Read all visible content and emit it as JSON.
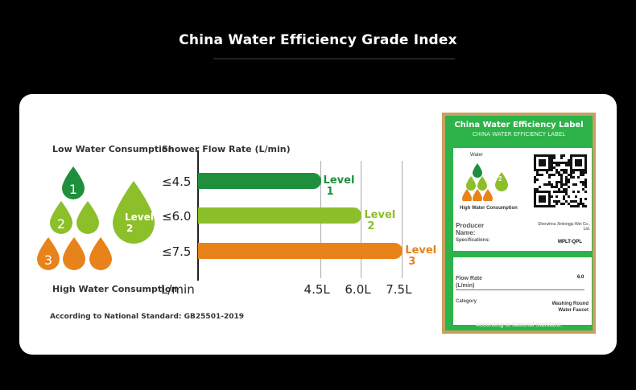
{
  "header": {
    "title": "China Water Efficiency Grade Index"
  },
  "left": {
    "low_label": "Low Water Consumption",
    "high_label": "High Water Consumption",
    "standard": "According to National Standard: GB25501-2019",
    "drops": [
      "1",
      "2",
      "3"
    ],
    "big_drop_label": "Level",
    "big_drop_num": "2"
  },
  "colors": {
    "green": "#1f8f3e",
    "lime": "#8cbf2a",
    "orange": "#e8821a",
    "label_green": "#2db34a"
  },
  "chart_data": {
    "type": "bar",
    "title": "Shower Flow Rate (L/min)",
    "orientation": "horizontal",
    "categories": [
      "≤4.5",
      "≤6.0",
      "≤7.5"
    ],
    "values": [
      4.5,
      6.0,
      7.5
    ],
    "level_labels": [
      {
        "word": "Level",
        "num": "1"
      },
      {
        "word": "Level",
        "num": "2"
      },
      {
        "word": "Level",
        "num": "3"
      }
    ],
    "xunit": "L/min",
    "xticks": [
      "4.5L",
      "6.0L",
      "7.5L"
    ],
    "xlim": [
      0,
      7.5
    ]
  },
  "label_card": {
    "title": "China Water Efficiency Label",
    "subtitle": "CHINA WATER EFFICIENCY LABEL",
    "water_text": "Water",
    "grade_text": "2",
    "consumption_text": "High Water Consumption",
    "producer_label": "Producer Name:",
    "producer_value": "Shenzhou Xinlongju Wei Co., Ltd.",
    "spec_label": "Specifications:",
    "spec_value": "MPLT-QPL",
    "flow_label": "Flow Rate (L/min)",
    "flow_value": "6.0",
    "category_label": "Category",
    "category_value": "Washing Round Water Faucet",
    "footer": "According to National Standard:"
  }
}
